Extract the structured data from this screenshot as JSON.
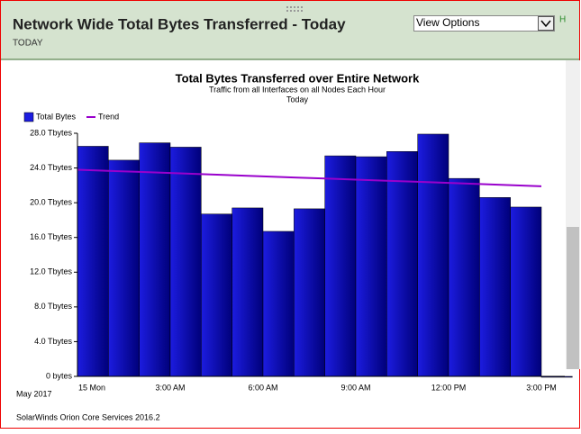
{
  "header": {
    "title": "Network Wide Total Bytes Transferred - Today",
    "subtitle": "TODAY",
    "dropdown": "View Options",
    "link": "H"
  },
  "chart_data": {
    "type": "bar",
    "title": "Total Bytes Transferred over Entire Network",
    "subtitle": "Traffic from all Interfaces on all Nodes Each Hour",
    "period": "Today",
    "x_label": "May 2017",
    "categories": [
      "15 Mon",
      null,
      null,
      "3:00 AM",
      null,
      null,
      "6:00 AM",
      null,
      null,
      "9:00 AM",
      null,
      null,
      "12:00 PM",
      null,
      null,
      "3:00 PM"
    ],
    "series": [
      {
        "name": "Total Bytes",
        "color": "#1c1ce0",
        "values": [
          26.5,
          24.9,
          26.9,
          26.4,
          18.7,
          19.4,
          16.7,
          19.3,
          25.4,
          25.3,
          25.9,
          27.9,
          22.8,
          20.6,
          19.5,
          0
        ]
      },
      {
        "name": "Trend",
        "color": "#9900cc",
        "line": true,
        "values": [
          23.8,
          23.67,
          23.55,
          23.42,
          23.29,
          23.17,
          23.04,
          22.91,
          22.79,
          22.66,
          22.53,
          22.41,
          22.28,
          22.15,
          22.03,
          21.9
        ]
      }
    ],
    "ylim": [
      0,
      28
    ],
    "yticks": [
      {
        "value": 0,
        "label": "0 bytes"
      },
      {
        "value": 4,
        "label": "4.0 Tbytes"
      },
      {
        "value": 8,
        "label": "8.0 Tbytes"
      },
      {
        "value": 12,
        "label": "12.0 Tbytes"
      },
      {
        "value": 16,
        "label": "16.0 Tbytes"
      },
      {
        "value": 20,
        "label": "20.0 Tbytes"
      },
      {
        "value": 24,
        "label": "24.0 Tbytes"
      },
      {
        "value": 28,
        "label": "28.0 Tbytes"
      }
    ]
  },
  "footer": "SolarWinds Orion Core Services 2016.2"
}
